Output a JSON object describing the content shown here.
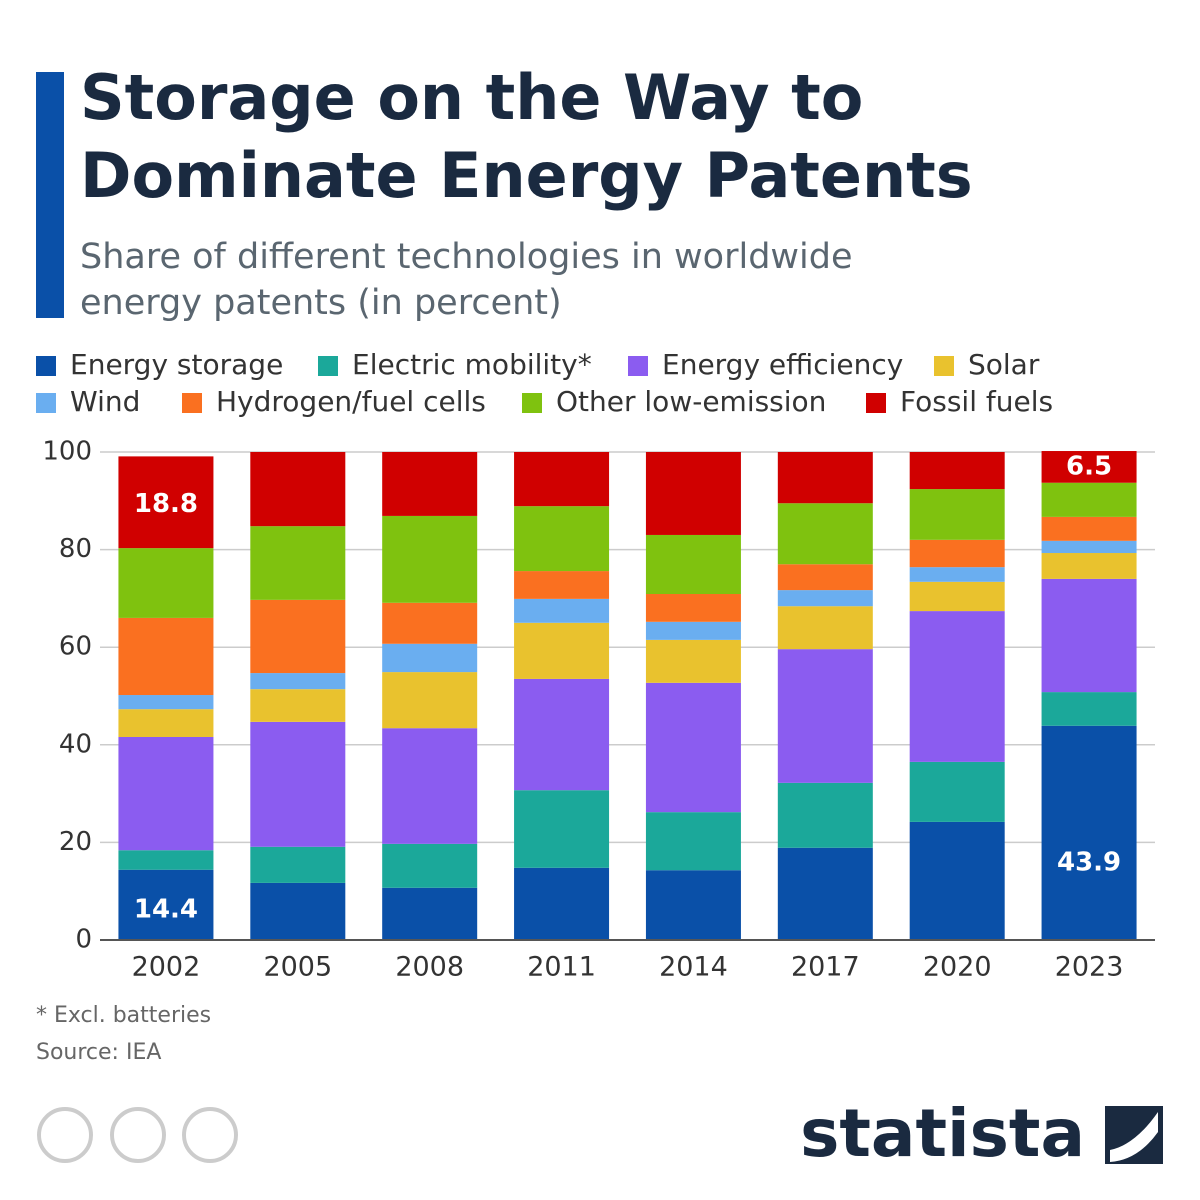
{
  "chart_data": {
    "type": "stacked_bar",
    "title": "Storage on the Way to Dominate Energy Patents",
    "title_lines": [
      "Storage on the Way to",
      "Dominate Energy Patents"
    ],
    "subtitle_lines": [
      "Share of different technologies in worldwide",
      "energy patents (in percent)"
    ],
    "categories": [
      "2002",
      "2005",
      "2008",
      "2011",
      "2014",
      "2017",
      "2020",
      "2023"
    ],
    "series": [
      {
        "name": "Energy storage",
        "color": "#0a50a8",
        "values": [
          14.4,
          11.7,
          10.7,
          14.8,
          14.3,
          18.9,
          24.2,
          43.9
        ],
        "value_labels": [
          "14.4",
          null,
          null,
          null,
          null,
          null,
          null,
          "43.9"
        ]
      },
      {
        "name": "Electric mobility*",
        "color": "#1ba89a",
        "values": [
          4.0,
          7.4,
          9.0,
          15.9,
          11.9,
          13.3,
          12.3,
          6.9
        ]
      },
      {
        "name": "Energy efficiency",
        "color": "#8b5cf0",
        "values": [
          23.2,
          25.6,
          23.7,
          22.8,
          26.5,
          27.4,
          30.9,
          23.2
        ]
      },
      {
        "name": "Solar",
        "color": "#e9c22e",
        "values": [
          5.7,
          6.7,
          11.5,
          11.5,
          8.8,
          8.8,
          6.0,
          5.3
        ]
      },
      {
        "name": "Wind",
        "color": "#6aaef0",
        "values": [
          2.9,
          3.3,
          5.8,
          4.9,
          3.7,
          3.3,
          3.0,
          2.5
        ]
      },
      {
        "name": "Hydrogen/fuel cells",
        "color": "#fa7020",
        "values": [
          15.8,
          15.0,
          8.4,
          5.7,
          5.7,
          5.3,
          5.6,
          4.9
        ]
      },
      {
        "name": "Other low-emission",
        "color": "#7fc20f",
        "values": [
          14.3,
          15.1,
          17.8,
          13.3,
          12.1,
          12.5,
          10.4,
          7.0
        ]
      },
      {
        "name": "Fossil fuels",
        "color": "#d00000",
        "values": [
          18.8,
          15.2,
          13.1,
          11.1,
          17.0,
          10.5,
          7.6,
          6.5
        ],
        "value_labels": [
          "18.8",
          null,
          null,
          null,
          null,
          null,
          null,
          "6.5"
        ]
      }
    ],
    "ylim": [
      0,
      100
    ],
    "yticks": [
      0,
      20,
      40,
      60,
      80,
      100
    ],
    "grid": true,
    "footnote": "* Excl. batteries",
    "source": "Source: IEA",
    "brand": "statista"
  }
}
